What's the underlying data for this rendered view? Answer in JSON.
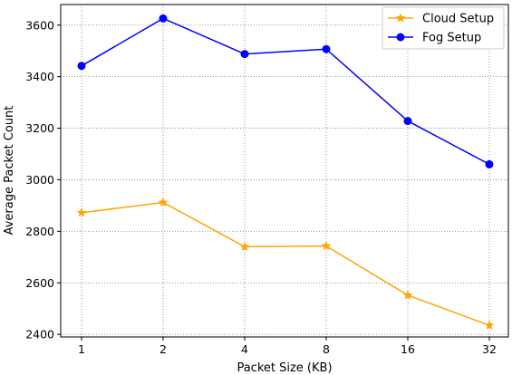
{
  "chart_data": {
    "type": "line",
    "categories": [
      "1",
      "2",
      "4",
      "8",
      "16",
      "32"
    ],
    "series": [
      {
        "name": "Cloud Setup",
        "values": [
          2872,
          2912,
          2740,
          2743,
          2552,
          2435
        ],
        "color": "#FFA500",
        "marker": "star"
      },
      {
        "name": "Fog Setup",
        "values": [
          3442,
          3626,
          3488,
          3507,
          3228,
          3060
        ],
        "color": "#0000FF",
        "marker": "circle"
      }
    ],
    "title": "",
    "xlabel": "Packet Size (KB)",
    "ylabel": "Average Packet Count",
    "ylim": [
      2390,
      3680
    ],
    "yticks": [
      2400,
      2600,
      2800,
      3000,
      3200,
      3400,
      3600
    ],
    "grid": true,
    "grid_style": "dotted",
    "legend_position": "top-right"
  }
}
